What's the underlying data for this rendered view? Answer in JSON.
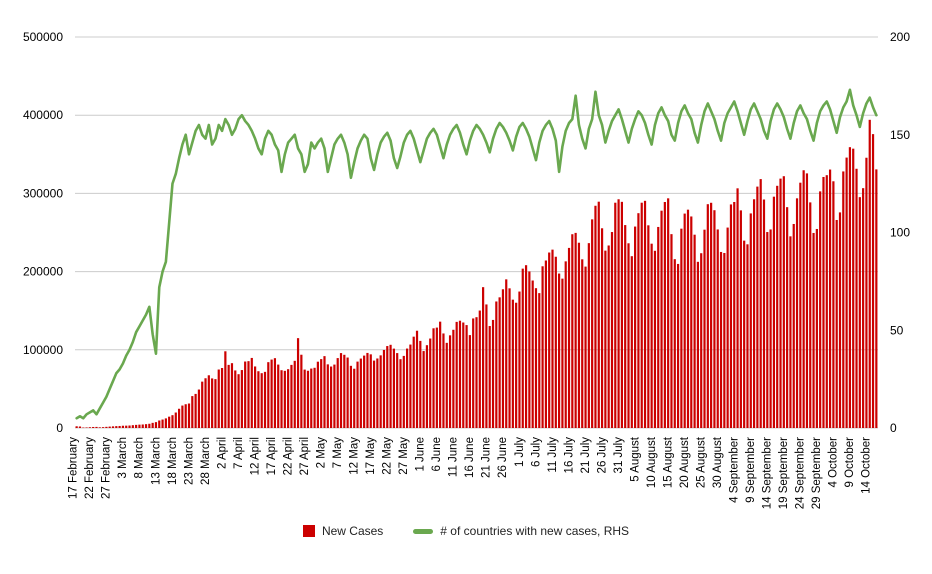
{
  "legend": {
    "new_cases_label": "New Cases",
    "countries_label": "# of countries with new cases, RHS"
  },
  "colors": {
    "bars": "#cc0000",
    "line": "#6aa84f",
    "grid": "#cccccc",
    "axis_text": "#000000",
    "background": "#ffffff"
  },
  "chart_data": {
    "type": "bar",
    "title": "",
    "xlabel": "",
    "ylabel": "",
    "left_axis": {
      "min": 0,
      "max": 500000,
      "ticks": [
        0,
        100000,
        200000,
        300000,
        400000,
        500000
      ]
    },
    "right_axis": {
      "min": 0,
      "max": 200,
      "ticks": [
        0,
        50,
        100,
        150,
        200
      ]
    },
    "grid": true,
    "legend_position": "bottom",
    "x_tick_interval": 5,
    "x_tick_labels": [
      "17 February",
      "22 February",
      "27 February",
      "3 March",
      "8 March",
      "13 March",
      "18 March",
      "23 March",
      "28 March",
      "2 April",
      "7 April",
      "12 April",
      "17 April",
      "22 April",
      "27 April",
      "2 May",
      "7 May",
      "12 May",
      "17 May",
      "22 May",
      "27 May",
      "1 June",
      "6 June",
      "11 June",
      "16 June",
      "21 June",
      "26 June",
      "1 July",
      "6 July",
      "11 July",
      "16 July",
      "21 July",
      "26 July",
      "31 July",
      "5 August",
      "10 August",
      "15 August",
      "20 August",
      "25 August",
      "30 August",
      "4 September",
      "9 September",
      "14 September",
      "19 September",
      "24 September",
      "29 September",
      "4 October",
      "9 October",
      "14 October"
    ],
    "series": [
      {
        "name": "New Cases",
        "type": "bar",
        "axis": "left",
        "values": [
          2200,
          1900,
          600,
          700,
          1000,
          1300,
          1400,
          900,
          1100,
          1500,
          1800,
          2100,
          2400,
          2600,
          2900,
          3000,
          3200,
          3600,
          4000,
          4300,
          4500,
          4900,
          5400,
          6600,
          7500,
          9600,
          10800,
          12300,
          14500,
          16400,
          19800,
          24600,
          28700,
          30400,
          31300,
          40800,
          43600,
          49200,
          59300,
          63600,
          67400,
          63400,
          62500,
          74800,
          76700,
          98100,
          80700,
          82900,
          73600,
          68800,
          74100,
          85000,
          85500,
          89600,
          78700,
          72600,
          70100,
          71800,
          84200,
          87500,
          89300,
          81100,
          73900,
          73100,
          75200,
          80700,
          85900,
          114900,
          93700,
          74700,
          73200,
          76000,
          77000,
          84800,
          88100,
          91900,
          81400,
          78600,
          81100,
          89400,
          95800,
          93600,
          90100,
          79500,
          75800,
          84900,
          88800,
          92600,
          96000,
          94200,
          86200,
          88900,
          92900,
          99800,
          104800,
          106400,
          101500,
          95800,
          88000,
          92200,
          101600,
          106700,
          116800,
          124400,
          111400,
          98400,
          105900,
          114400,
          127500,
          128400,
          136000,
          120900,
          108900,
          118500,
          125600,
          135700,
          137200,
          134900,
          131600,
          118800,
          140100,
          141700,
          150200,
          180100,
          158000,
          130400,
          138200,
          161800,
          167100,
          177400,
          190100,
          178600,
          164100,
          160200,
          174500,
          203800,
          208200,
          200200,
          188600,
          178800,
          172500,
          206800,
          214200,
          224400,
          228100,
          219000,
          197500,
          191000,
          213100,
          230300,
          247800,
          249500,
          236900,
          215700,
          206400,
          236400,
          266800,
          284200,
          289400,
          255400,
          226800,
          233400,
          250600,
          288100,
          292500,
          289200,
          259500,
          236200,
          219700,
          257600,
          274700,
          288100,
          290500,
          259200,
          235700,
          226600,
          257100,
          277900,
          289000,
          293700,
          247900,
          215900,
          209800,
          254900,
          274200,
          279200,
          270500,
          247200,
          212500,
          223500,
          253600,
          286200,
          288000,
          278500,
          253900,
          225100,
          223800,
          256300,
          285900,
          289000,
          306500,
          278300,
          239600,
          234900,
          274400,
          292500,
          308700,
          318300,
          292200,
          250600,
          253900,
          295800,
          309700,
          318900,
          322000,
          282400,
          245100,
          260900,
          293700,
          313700,
          329600,
          325600,
          288500,
          249400,
          254500,
          302600,
          321000,
          323300,
          330500,
          315500,
          266000,
          275700,
          328100,
          345800,
          359100,
          357200,
          331500,
          295200,
          306700,
          345600,
          394100,
          375800,
          330700
        ]
      },
      {
        "name": "# of countries with new cases, RHS",
        "type": "line",
        "axis": "right",
        "values": [
          5,
          6,
          5,
          7,
          8,
          9,
          7,
          10,
          13,
          16,
          20,
          24,
          28,
          30,
          33,
          37,
          40,
          44,
          49,
          52,
          55,
          58,
          62,
          48,
          38,
          72,
          80,
          85,
          105,
          125,
          130,
          138,
          145,
          150,
          140,
          146,
          152,
          155,
          150,
          148,
          155,
          145,
          148,
          155,
          152,
          158,
          155,
          150,
          153,
          158,
          160,
          157,
          155,
          152,
          148,
          143,
          140,
          148,
          152,
          150,
          145,
          142,
          131,
          140,
          146,
          148,
          150,
          143,
          140,
          131,
          135,
          146,
          143,
          146,
          148,
          143,
          131,
          138,
          145,
          148,
          150,
          146,
          140,
          128,
          136,
          143,
          147,
          150,
          148,
          138,
          132,
          140,
          146,
          149,
          151,
          147,
          138,
          133,
          139,
          146,
          150,
          152,
          148,
          142,
          136,
          142,
          148,
          151,
          153,
          150,
          144,
          138,
          145,
          150,
          153,
          155,
          151,
          145,
          140,
          147,
          152,
          155,
          153,
          150,
          146,
          141,
          148,
          153,
          156,
          154,
          151,
          147,
          142,
          149,
          154,
          156,
          153,
          149,
          143,
          137,
          146,
          152,
          155,
          157,
          153,
          147,
          131,
          144,
          152,
          156,
          158,
          170,
          155,
          148,
          143,
          153,
          158,
          172,
          160,
          155,
          146,
          152,
          157,
          160,
          163,
          158,
          152,
          146,
          153,
          158,
          162,
          160,
          156,
          150,
          145,
          155,
          161,
          164,
          160,
          157,
          150,
          147,
          156,
          162,
          165,
          161,
          158,
          151,
          146,
          155,
          162,
          166,
          162,
          158,
          152,
          147,
          156,
          161,
          164,
          167,
          162,
          156,
          150,
          157,
          163,
          166,
          162,
          158,
          152,
          148,
          157,
          163,
          166,
          163,
          159,
          153,
          148,
          156,
          162,
          165,
          161,
          158,
          152,
          147,
          156,
          162,
          165,
          167,
          163,
          157,
          151,
          159,
          164,
          167,
          173,
          165,
          160,
          154,
          161,
          166,
          169,
          164,
          160
        ]
      }
    ]
  }
}
